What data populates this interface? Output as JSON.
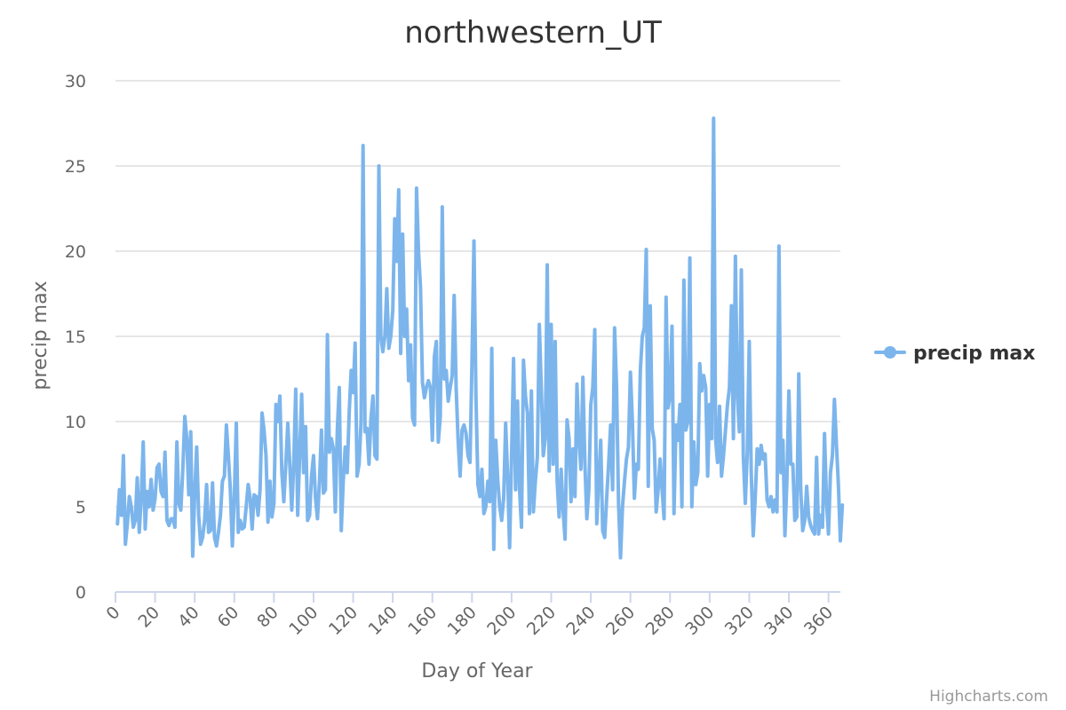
{
  "credits": "Highcharts.com",
  "chart_data": {
    "type": "line",
    "title": "northwestern_UT",
    "xlabel": "Day of Year",
    "ylabel": "precip max",
    "xlim": [
      0,
      366
    ],
    "ylim": [
      0,
      30
    ],
    "x_ticks": [
      0,
      20,
      40,
      60,
      80,
      100,
      120,
      140,
      160,
      180,
      200,
      220,
      240,
      260,
      280,
      300,
      320,
      340,
      360
    ],
    "y_ticks": [
      0,
      5,
      10,
      15,
      20,
      25,
      30
    ],
    "grid": true,
    "legend_position": "right",
    "color": "#7cb5ec",
    "series": [
      {
        "name": "precip max",
        "x_start": 1,
        "values": [
          4.0,
          6.0,
          4.5,
          8.0,
          2.8,
          4.0,
          5.6,
          5.0,
          3.8,
          4.2,
          6.7,
          3.5,
          5.5,
          8.8,
          3.7,
          5.9,
          5.0,
          6.6,
          4.8,
          5.5,
          7.3,
          7.5,
          5.9,
          5.6,
          8.2,
          4.2,
          3.9,
          4.3,
          4.3,
          3.8,
          8.8,
          5.2,
          4.8,
          7.2,
          10.3,
          9.0,
          5.7,
          9.4,
          2.1,
          5.8,
          8.5,
          4.5,
          2.8,
          3.2,
          4.2,
          6.3,
          3.5,
          3.6,
          6.4,
          3.2,
          2.7,
          3.5,
          4.5,
          6.5,
          6.8,
          9.8,
          8.0,
          6.0,
          2.7,
          5.5,
          9.9,
          3.5,
          4.2,
          3.7,
          3.8,
          5.0,
          6.3,
          5.5,
          3.7,
          5.7,
          5.6,
          4.5,
          6.0,
          10.5,
          9.5,
          8.0,
          4.1,
          6.5,
          4.4,
          5.2,
          11.0,
          10.0,
          11.5,
          7.0,
          5.3,
          7.5,
          9.9,
          7.5,
          4.8,
          7.5,
          11.9,
          4.5,
          8.0,
          11.6,
          7.0,
          9.7,
          4.2,
          4.5,
          6.8,
          8.0,
          5.5,
          4.3,
          6.5,
          9.5,
          5.8,
          6.0,
          15.1,
          8.2,
          9.0,
          8.4,
          4.7,
          9.5,
          12.0,
          3.6,
          6.5,
          8.5,
          7.0,
          10.5,
          13.0,
          11.7,
          14.6,
          6.8,
          7.5,
          10.0,
          26.2,
          9.4,
          9.6,
          7.5,
          10.2,
          11.5,
          8.0,
          7.8,
          25.0,
          15.0,
          14.1,
          15.0,
          17.8,
          14.3,
          15.0,
          16.5,
          21.9,
          19.4,
          23.6,
          14.0,
          21.0,
          15.0,
          16.6,
          12.4,
          14.5,
          10.2,
          9.8,
          23.7,
          20.0,
          17.9,
          12.3,
          11.4,
          12.0,
          12.4,
          12.0,
          8.9,
          13.8,
          14.7,
          8.8,
          10.3,
          22.6,
          12.5,
          13.0,
          11.2,
          12.0,
          12.7,
          17.4,
          12.0,
          8.9,
          6.8,
          9.5,
          9.8,
          9.3,
          8.0,
          7.6,
          13.5,
          20.6,
          11.5,
          6.3,
          5.6,
          7.2,
          4.6,
          5.0,
          6.5,
          5.3,
          14.3,
          2.5,
          8.9,
          6.6,
          5.0,
          4.2,
          5.5,
          9.9,
          6.8,
          2.6,
          8.0,
          13.7,
          6.0,
          11.2,
          6.0,
          3.8,
          13.6,
          11.5,
          10.5,
          4.6,
          11.8,
          4.7,
          6.5,
          7.9,
          15.7,
          12.0,
          8.0,
          9.0,
          19.2,
          7.1,
          15.7,
          7.5,
          14.7,
          6.5,
          4.4,
          7.2,
          4.8,
          3.1,
          10.1,
          9.0,
          5.3,
          8.4,
          5.6,
          12.2,
          9.0,
          7.2,
          12.6,
          7.6,
          4.3,
          6.0,
          11.0,
          12.0,
          15.4,
          4.0,
          6.5,
          8.9,
          3.6,
          3.2,
          5.5,
          7.5,
          9.8,
          6.0,
          15.5,
          12.0,
          5.2,
          2.0,
          5.0,
          6.5,
          7.8,
          8.5,
          12.9,
          10.0,
          5.5,
          7.5,
          7.2,
          13.0,
          15.0,
          15.5,
          20.1,
          6.2,
          16.8,
          9.6,
          8.9,
          4.7,
          6.0,
          7.8,
          6.0,
          4.3,
          17.3,
          10.8,
          11.5,
          15.6,
          4.6,
          9.8,
          8.9,
          11.0,
          5.0,
          18.3,
          9.5,
          10.0,
          19.6,
          5.0,
          8.8,
          6.3,
          7.0,
          13.4,
          11.8,
          12.7,
          12.0,
          6.8,
          11.0,
          9.0,
          27.8,
          9.0,
          7.6,
          10.9,
          6.8,
          8.0,
          9.5,
          11.0,
          12.0,
          16.8,
          9.0,
          19.7,
          11.5,
          9.4,
          18.9,
          8.0,
          5.2,
          8.2,
          14.7,
          7.0,
          3.3,
          5.5,
          8.4,
          7.5,
          8.6,
          7.8,
          8.1,
          5.4,
          5.0,
          5.6,
          4.7,
          5.4,
          4.7,
          20.3,
          7.0,
          8.9,
          3.3,
          6.5,
          11.8,
          7.5,
          7.5,
          4.2,
          4.4,
          12.8,
          6.0,
          3.6,
          4.2,
          6.2,
          4.4,
          3.9,
          3.6,
          3.4,
          7.9,
          3.4,
          4.5,
          3.8,
          9.3,
          5.3,
          3.4,
          7.0,
          8.0,
          11.3,
          8.7,
          6.3,
          3.0,
          5.1
        ]
      }
    ]
  }
}
